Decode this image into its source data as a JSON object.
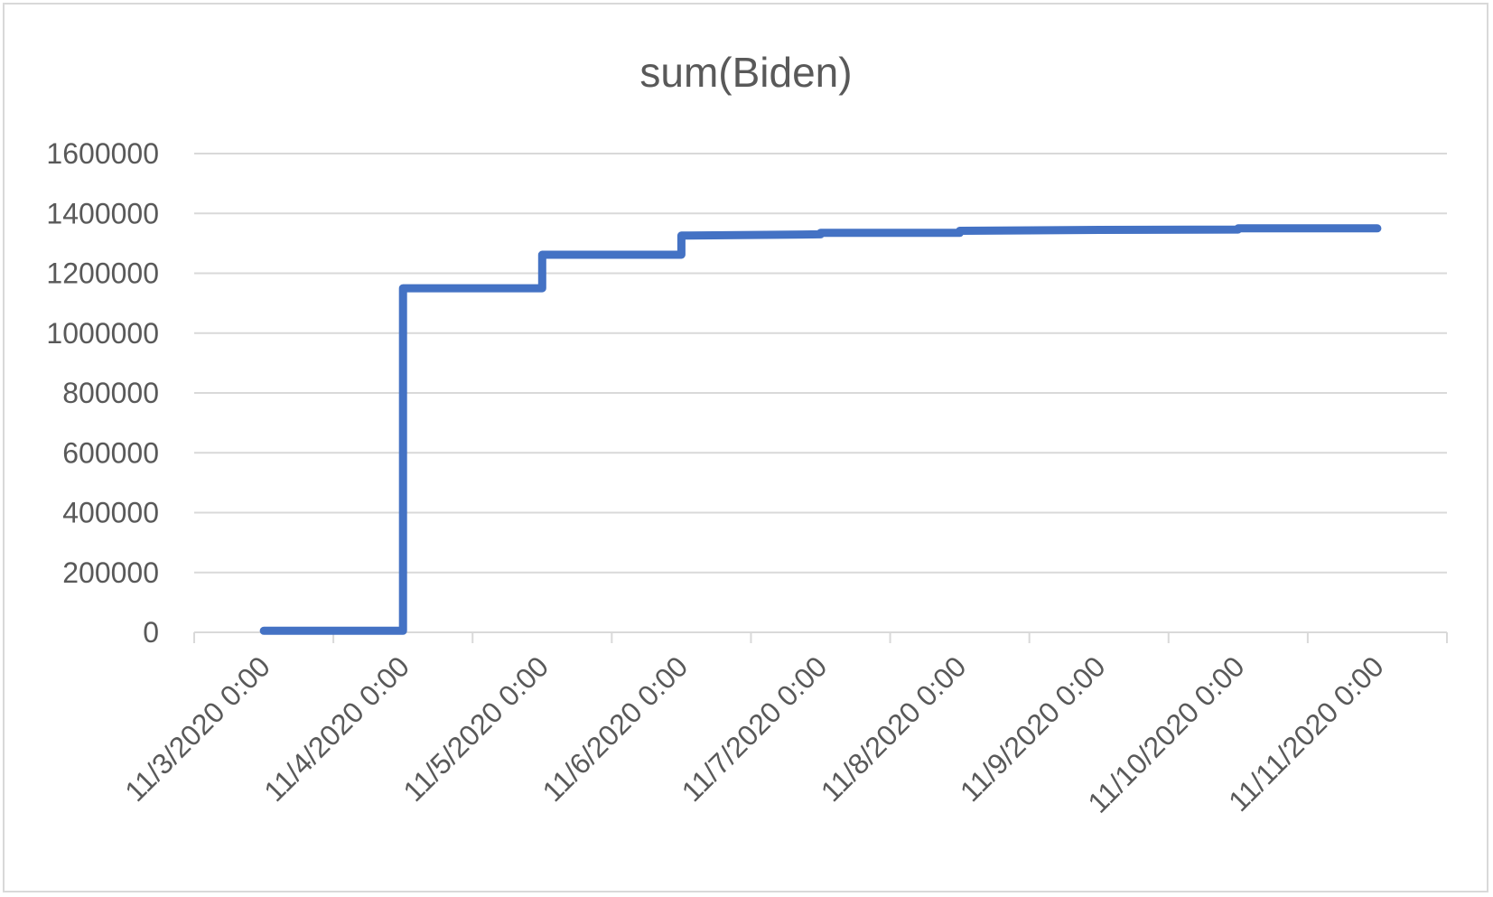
{
  "chart_data": {
    "type": "line",
    "step": true,
    "title": "sum(Biden)",
    "xlabel": "",
    "ylabel": "",
    "ylim": [
      0,
      1600000
    ],
    "yticks": [
      0,
      200000,
      400000,
      600000,
      800000,
      1000000,
      1200000,
      1400000,
      1600000
    ],
    "x_tick_labels": [
      "11/3/2020 0:00",
      "11/4/2020 0:00",
      "11/5/2020 0:00",
      "11/6/2020 0:00",
      "11/7/2020 0:00",
      "11/8/2020 0:00",
      "11/9/2020 0:00",
      "11/10/2020 0:00",
      "11/11/2020 0:00"
    ],
    "grid": true,
    "legend": "none",
    "series": [
      {
        "color": "#4472C4",
        "points": [
          {
            "x": "11/3/2020 12:00",
            "y": 5000
          },
          {
            "x": "11/4/2020 12:00",
            "y": 5000
          },
          {
            "x": "11/4/2020 12:00",
            "y": 1150000
          },
          {
            "x": "11/5/2020 12:00",
            "y": 1150000
          },
          {
            "x": "11/5/2020 12:00",
            "y": 1262000
          },
          {
            "x": "11/6/2020 12:00",
            "y": 1262000
          },
          {
            "x": "11/6/2020 12:00",
            "y": 1326000
          },
          {
            "x": "11/7/2020 12:00",
            "y": 1330000
          },
          {
            "x": "11/7/2020 12:00",
            "y": 1335000
          },
          {
            "x": "11/8/2020 12:00",
            "y": 1335000
          },
          {
            "x": "11/8/2020 12:00",
            "y": 1342000
          },
          {
            "x": "11/9/2020 12:00",
            "y": 1345000
          },
          {
            "x": "11/10/2020 12:00",
            "y": 1346000
          },
          {
            "x": "11/10/2020 12:00",
            "y": 1350000
          },
          {
            "x": "11/11/2020 12:00",
            "y": 1350000
          }
        ]
      }
    ]
  }
}
